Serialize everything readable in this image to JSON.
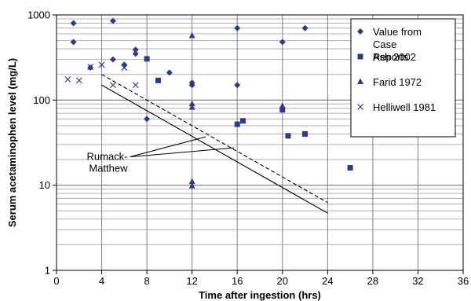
{
  "chart_data": {
    "type": "scatter",
    "title": "",
    "xlabel": "Time after ingestion (hrs)",
    "ylabel": "Serum acetaminophen level (mg/L)",
    "xlim": [
      0,
      36
    ],
    "ylim": [
      1,
      1000
    ],
    "x_ticks": [
      0,
      4,
      8,
      12,
      16,
      20,
      24,
      28,
      32,
      36
    ],
    "y_scale": "log",
    "y_ticks": [
      1,
      10,
      100,
      1000
    ],
    "grid": "horizontal minor log gridlines and vertical gridlines at each 4 hrs",
    "legend_position": "top-right inside plot",
    "colors": {
      "marker": "#2b3990",
      "line": "#000000"
    },
    "series": [
      {
        "name": "Value from Case Reports",
        "marker": "diamond",
        "points": [
          [
            1.5,
            800
          ],
          [
            1.5,
            480
          ],
          [
            3,
            240
          ],
          [
            5,
            850
          ],
          [
            5,
            300
          ],
          [
            6,
            260
          ],
          [
            7,
            390
          ],
          [
            7,
            350
          ],
          [
            8,
            60
          ],
          [
            10,
            210
          ],
          [
            12,
            160
          ],
          [
            12,
            150
          ],
          [
            16,
            700
          ],
          [
            16,
            150
          ],
          [
            20,
            480
          ],
          [
            22,
            700
          ]
        ]
      },
      {
        "name": "Ash 2002",
        "marker": "square",
        "points": [
          [
            8,
            305
          ],
          [
            9,
            170
          ],
          [
            16,
            52
          ],
          [
            16.5,
            57
          ],
          [
            20,
            77
          ],
          [
            20.5,
            38
          ],
          [
            22,
            40
          ],
          [
            26,
            16
          ]
        ]
      },
      {
        "name": "Farid 1972",
        "marker": "triangle",
        "points": [
          [
            12,
            570
          ],
          [
            12,
            90
          ],
          [
            12,
            82
          ],
          [
            12,
            11
          ],
          [
            12,
            9.8
          ],
          [
            20,
            85
          ]
        ]
      },
      {
        "name": "Helliwell 1981",
        "marker": "x",
        "points": [
          [
            1,
            175
          ],
          [
            2,
            170
          ],
          [
            3,
            245
          ],
          [
            4,
            260
          ],
          [
            5,
            150
          ],
          [
            6,
            240
          ],
          [
            7,
            150
          ]
        ]
      }
    ],
    "lines": [
      {
        "style": "solid",
        "from": [
          4,
          150
        ],
        "to": [
          24,
          4.7
        ]
      },
      {
        "style": "dashed",
        "from": [
          4,
          200
        ],
        "to": [
          24,
          6.25
        ]
      }
    ],
    "annotations": [
      {
        "text": [
          "Rumack-",
          "Matthew"
        ],
        "anchor": [
          6.5,
          21.5
        ],
        "points_to": [
          [
            13.2,
            37
          ],
          [
            15.7,
            27.5
          ]
        ]
      }
    ]
  }
}
